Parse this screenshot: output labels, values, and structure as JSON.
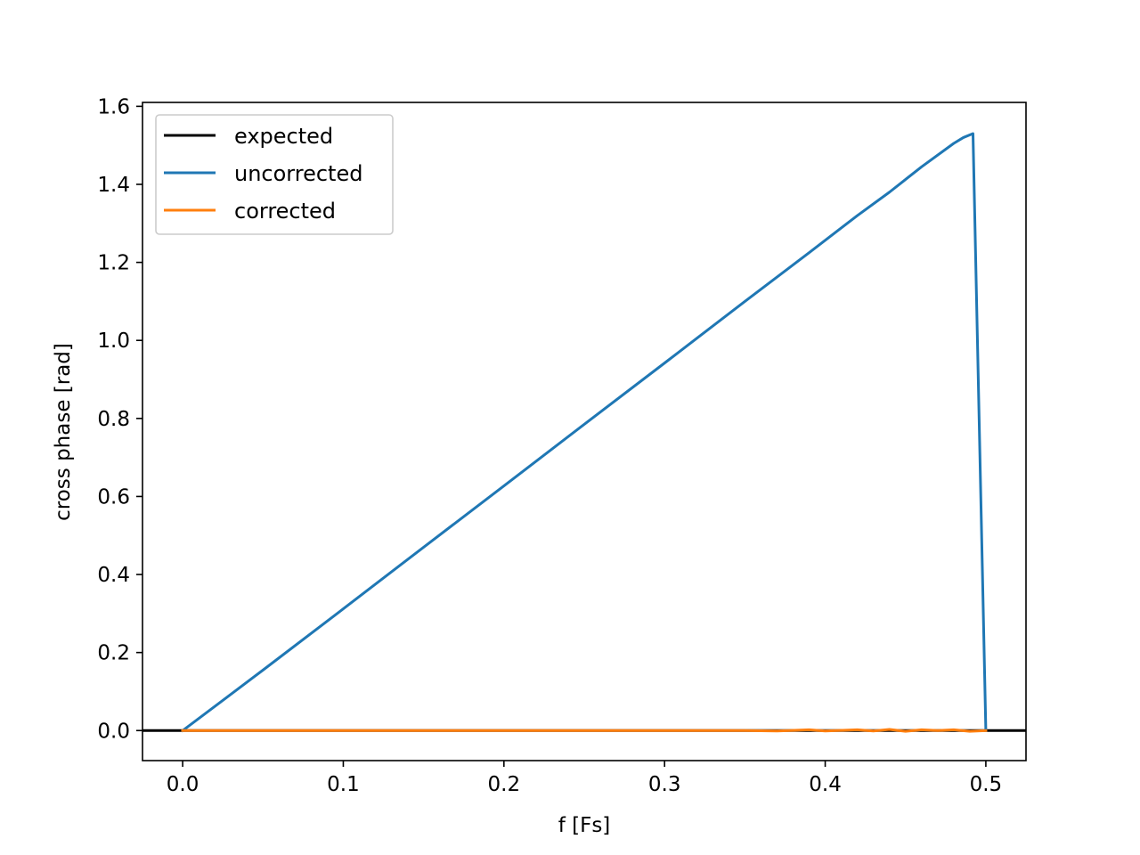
{
  "chart_data": {
    "type": "line",
    "title": "",
    "xlabel": "f [Fs]",
    "ylabel": "cross phase [rad]",
    "xlim": [
      -0.025,
      0.525
    ],
    "ylim": [
      -0.077,
      1.61
    ],
    "grid": false,
    "legend_position": "upper-left",
    "x_ticks": [
      0.0,
      0.1,
      0.2,
      0.3,
      0.4,
      0.5
    ],
    "x_tick_labels": [
      "0.0",
      "0.1",
      "0.2",
      "0.3",
      "0.4",
      "0.5"
    ],
    "y_ticks": [
      0.0,
      0.2,
      0.4,
      0.6,
      0.8,
      1.0,
      1.2,
      1.4,
      1.6
    ],
    "y_tick_labels": [
      "0.0",
      "0.2",
      "0.4",
      "0.6",
      "0.8",
      "1.0",
      "1.2",
      "1.4",
      "1.6"
    ],
    "series": [
      {
        "name": "expected",
        "color": "#000000",
        "x": [
          -0.025,
          0.525
        ],
        "y": [
          0.0,
          0.0
        ]
      },
      {
        "name": "uncorrected",
        "color": "#1f77b4",
        "x": [
          0.0,
          0.05,
          0.1,
          0.15,
          0.2,
          0.25,
          0.3,
          0.35,
          0.39,
          0.42,
          0.44,
          0.46,
          0.48,
          0.486,
          0.492,
          0.5
        ],
        "y": [
          0.0,
          0.155,
          0.312,
          0.47,
          0.627,
          0.785,
          0.942,
          1.1,
          1.225,
          1.32,
          1.38,
          1.445,
          1.505,
          1.52,
          1.53,
          0.0
        ]
      },
      {
        "name": "corrected",
        "color": "#ff7f0e",
        "x": [
          0.0,
          0.1,
          0.2,
          0.3,
          0.35,
          0.37,
          0.39,
          0.4,
          0.42,
          0.43,
          0.44,
          0.45,
          0.46,
          0.47,
          0.48,
          0.49,
          0.5
        ],
        "y": [
          0.0,
          0.0,
          0.0,
          0.0,
          0.0,
          -0.001,
          0.002,
          -0.001,
          0.002,
          -0.001,
          0.003,
          -0.002,
          0.002,
          0.0,
          0.002,
          -0.002,
          0.0
        ]
      }
    ]
  }
}
